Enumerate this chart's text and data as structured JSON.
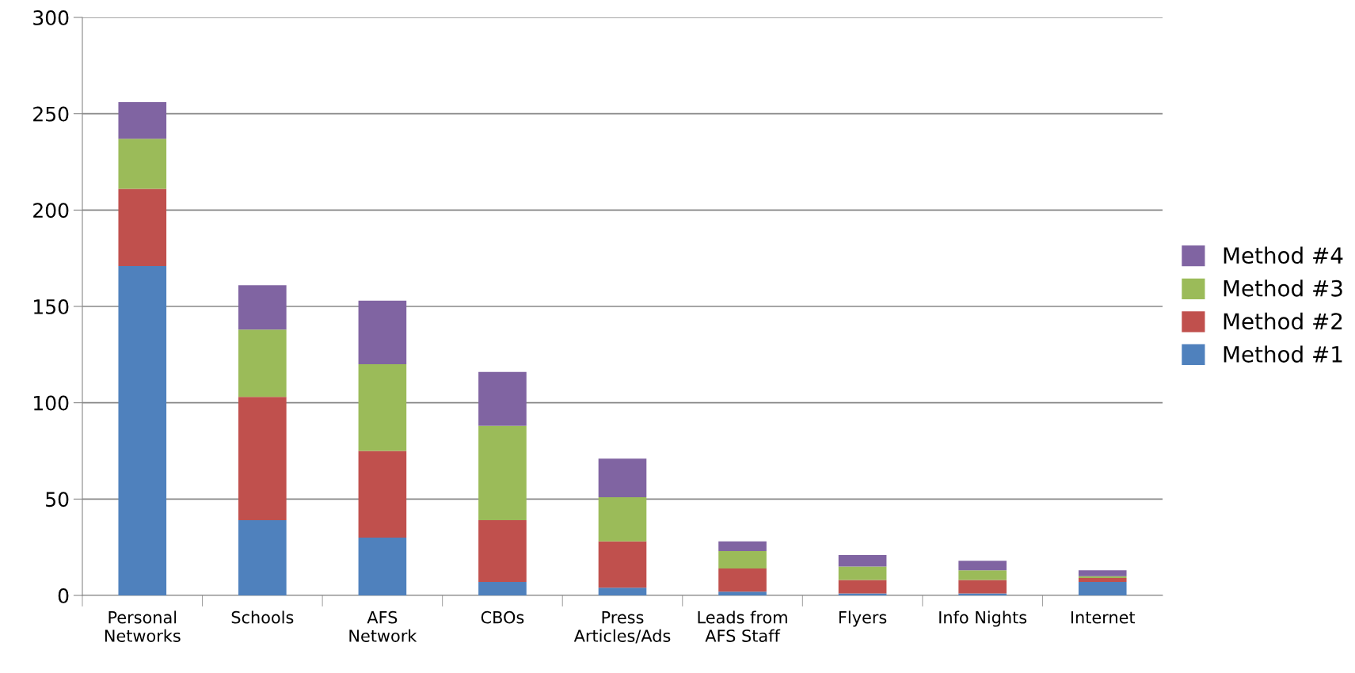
{
  "chart_data": {
    "type": "bar",
    "stacked": true,
    "categories": [
      "Personal\nNetworks",
      "Schools",
      "AFS\nNetwork",
      "CBOs",
      "Press\nArticles/Ads",
      "Leads from\nAFS Staff",
      "Flyers",
      "Info Nights",
      "Internet"
    ],
    "series": [
      {
        "name": "Method #1",
        "color": "#4f81bd",
        "values": [
          171,
          39,
          30,
          7,
          4,
          2,
          1,
          1,
          7
        ]
      },
      {
        "name": "Method #2",
        "color": "#c0504d",
        "values": [
          40,
          64,
          45,
          32,
          24,
          12,
          7,
          7,
          2
        ]
      },
      {
        "name": "Method #3",
        "color": "#9bbb59",
        "values": [
          26,
          35,
          45,
          49,
          23,
          9,
          7,
          5,
          1
        ]
      },
      {
        "name": "Method #4",
        "color": "#8064a2",
        "values": [
          19,
          23,
          33,
          28,
          20,
          5,
          6,
          5,
          3
        ]
      }
    ],
    "ylim": [
      0,
      300
    ],
    "yticks": [
      0,
      50,
      100,
      150,
      200,
      250,
      300
    ],
    "grid": "y",
    "legend": "right"
  }
}
